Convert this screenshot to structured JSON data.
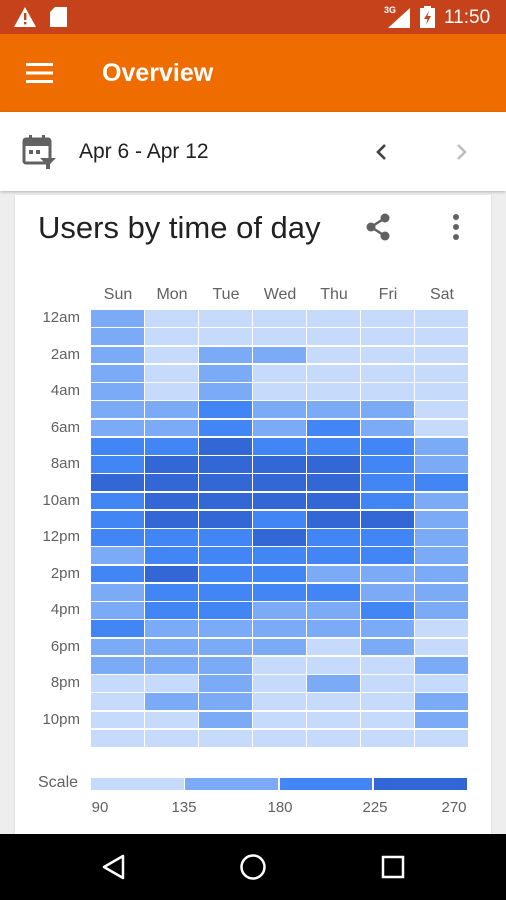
{
  "status_bar": {
    "time": "11:50",
    "network": "3G",
    "icons": [
      "warning-icon",
      "sd-card-icon",
      "signal-icon",
      "battery-charging-icon"
    ]
  },
  "app_bar": {
    "title": "Overview",
    "menu_icon": "hamburger-menu-icon"
  },
  "date_bar": {
    "range": "Apr 6 - Apr 12",
    "calendar_icon": "calendar-filter-icon",
    "prev_icon": "chevron-left-icon",
    "next_icon": "chevron-right-icon"
  },
  "card": {
    "title": "Users by time of day",
    "share_icon": "share-icon",
    "more_icon": "more-vert-icon"
  },
  "colors": {
    "level0": "#c6dafc",
    "level1": "#7baaf7",
    "level2": "#4285f4",
    "level3": "#3367d6",
    "app_bar": "#ef6c00",
    "status_bar": "#c6421a"
  },
  "chart_data": {
    "type": "heatmap",
    "title": "Users by time of day",
    "x_categories": [
      "Sun",
      "Mon",
      "Tue",
      "Wed",
      "Thu",
      "Fri",
      "Sat"
    ],
    "y_categories": [
      "12am",
      "1am",
      "2am",
      "3am",
      "4am",
      "5am",
      "6am",
      "7am",
      "8am",
      "9am",
      "10am",
      "11am",
      "12pm",
      "1pm",
      "2pm",
      "3pm",
      "4pm",
      "5pm",
      "6pm",
      "7pm",
      "8pm",
      "9pm",
      "10pm",
      "11pm"
    ],
    "y_tick_labels": [
      "12am",
      "2am",
      "4am",
      "6am",
      "8am",
      "10am",
      "12pm",
      "2pm",
      "4pm",
      "6pm",
      "8pm",
      "10pm"
    ],
    "levels": [
      [
        1,
        0,
        0,
        0,
        0,
        0,
        0
      ],
      [
        1,
        0,
        0,
        0,
        0,
        0,
        0
      ],
      [
        1,
        0,
        1,
        1,
        0,
        0,
        0
      ],
      [
        1,
        0,
        1,
        0,
        0,
        0,
        0
      ],
      [
        1,
        0,
        1,
        0,
        0,
        0,
        0
      ],
      [
        1,
        1,
        2,
        1,
        1,
        1,
        0
      ],
      [
        1,
        1,
        2,
        1,
        2,
        1,
        0
      ],
      [
        2,
        2,
        3,
        2,
        2,
        2,
        1
      ],
      [
        2,
        3,
        3,
        3,
        3,
        2,
        1
      ],
      [
        3,
        3,
        3,
        3,
        3,
        2,
        2
      ],
      [
        2,
        3,
        3,
        3,
        3,
        2,
        1
      ],
      [
        2,
        3,
        3,
        2,
        3,
        3,
        1
      ],
      [
        2,
        2,
        2,
        3,
        2,
        2,
        1
      ],
      [
        1,
        2,
        2,
        2,
        2,
        2,
        1
      ],
      [
        2,
        3,
        2,
        2,
        1,
        1,
        1
      ],
      [
        1,
        2,
        2,
        2,
        2,
        1,
        1
      ],
      [
        1,
        2,
        2,
        1,
        1,
        2,
        1
      ],
      [
        2,
        1,
        1,
        1,
        1,
        1,
        0
      ],
      [
        1,
        1,
        1,
        1,
        0,
        1,
        0
      ],
      [
        1,
        1,
        1,
        0,
        0,
        0,
        1
      ],
      [
        0,
        0,
        1,
        0,
        1,
        0,
        0
      ],
      [
        0,
        1,
        1,
        0,
        0,
        0,
        1
      ],
      [
        0,
        0,
        1,
        0,
        0,
        0,
        1
      ],
      [
        0,
        0,
        0,
        0,
        0,
        0,
        0
      ]
    ],
    "scale": {
      "label": "Scale",
      "ticks": [
        "90",
        "135",
        "180",
        "225",
        "270"
      ]
    }
  }
}
